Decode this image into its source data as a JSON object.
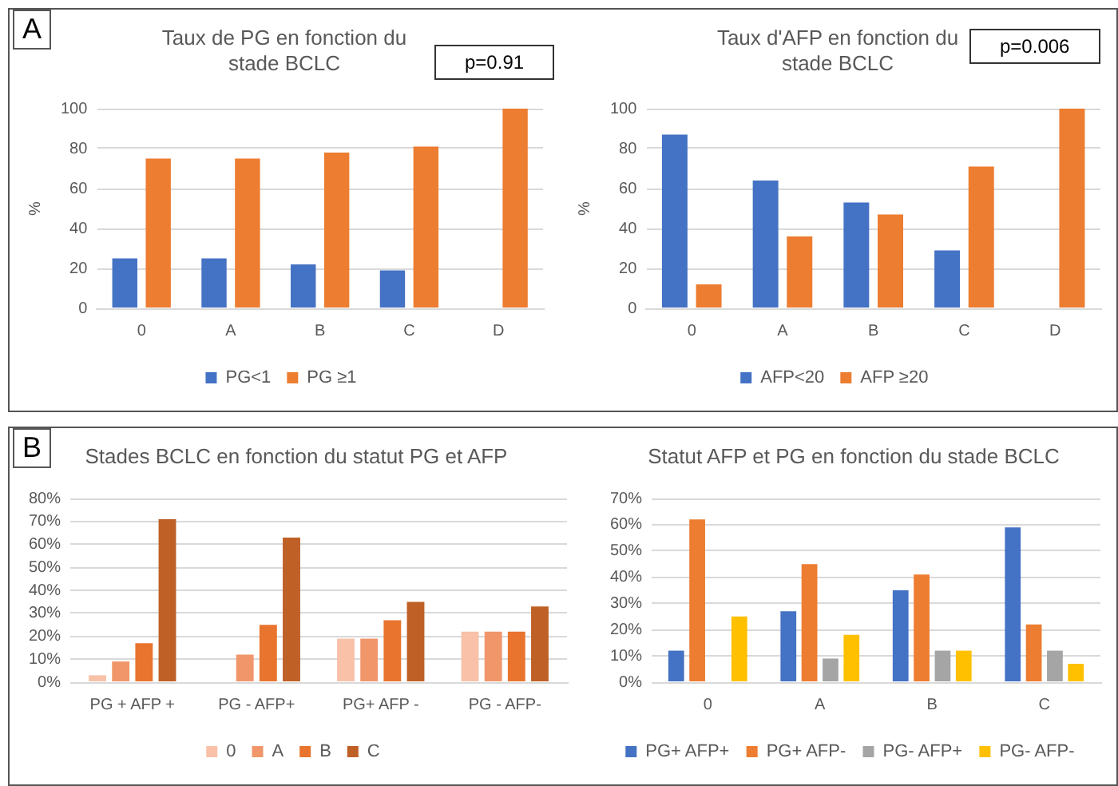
{
  "chart_data": [
    {
      "type": "bar",
      "title": "Taux de PG en fonction du stade BCLC",
      "ylabel": "%",
      "annotations": [
        "A",
        "p=0.91"
      ],
      "categories": [
        "0",
        "A",
        "B",
        "C",
        "D"
      ],
      "series": [
        {
          "name": "PG<1",
          "color": "#4472c4",
          "values": [
            25,
            25,
            22,
            19,
            0
          ]
        },
        {
          "name": "PG ≥1",
          "color": "#ed7d31",
          "values": [
            75,
            75,
            78,
            81,
            100
          ]
        }
      ],
      "ylim": [
        0,
        100
      ],
      "yticks": [
        0,
        20,
        40,
        60,
        80,
        100
      ],
      "grid": "y",
      "legend": "bottom"
    },
    {
      "type": "bar",
      "title": "Taux d'AFP en fonction du stade BCLC",
      "ylabel": "%",
      "annotations": [
        "p=0.006"
      ],
      "categories": [
        "0",
        "A",
        "B",
        "C",
        "D"
      ],
      "series": [
        {
          "name": "AFP<20",
          "color": "#4472c4",
          "values": [
            87,
            64,
            53,
            29,
            0
          ]
        },
        {
          "name": "AFP ≥20",
          "color": "#ed7d31",
          "values": [
            12,
            36,
            47,
            71,
            100
          ]
        }
      ],
      "ylim": [
        0,
        100
      ],
      "yticks": [
        0,
        20,
        40,
        60,
        80,
        100
      ],
      "grid": "y",
      "legend": "bottom"
    },
    {
      "type": "bar",
      "title": "Stades BCLC en fonction du statut PG et AFP",
      "annotations": [
        "B"
      ],
      "categories": [
        "PG + AFP +",
        "PG - AFP+",
        "PG+ AFP -",
        "PG - AFP-"
      ],
      "series": [
        {
          "name": "0",
          "color": "#f8c1a8",
          "values": [
            3,
            0,
            19,
            22
          ]
        },
        {
          "name": "A",
          "color": "#f0966a",
          "values": [
            9,
            12,
            19,
            22
          ]
        },
        {
          "name": "B",
          "color": "#e8742e",
          "values": [
            17,
            25,
            27,
            22
          ]
        },
        {
          "name": "C",
          "color": "#bf6026",
          "values": [
            71,
            63,
            35,
            33
          ]
        }
      ],
      "ylim": [
        0,
        80
      ],
      "yticks": [
        {
          "value": 0,
          "label": "0%"
        },
        {
          "value": 10,
          "label": "10%"
        },
        {
          "value": 20,
          "label": "20%"
        },
        {
          "value": 30,
          "label": "30%"
        },
        {
          "value": 40,
          "label": "40%"
        },
        {
          "value": 50,
          "label": "50%"
        },
        {
          "value": 60,
          "label": "60%"
        },
        {
          "value": 70,
          "label": "70%"
        },
        {
          "value": 80,
          "label": "80%"
        }
      ],
      "grid": "y",
      "legend": "bottom"
    },
    {
      "type": "bar",
      "title": "Statut AFP et PG en fonction du stade BCLC",
      "categories": [
        "0",
        "A",
        "B",
        "C"
      ],
      "series": [
        {
          "name": "PG+ AFP+",
          "color": "#4472c4",
          "values": [
            12,
            27,
            35,
            59
          ]
        },
        {
          "name": "PG+ AFP-",
          "color": "#ed7d31",
          "values": [
            62,
            45,
            41,
            22
          ]
        },
        {
          "name": "PG- AFP+",
          "color": "#a5a5a5",
          "values": [
            0,
            9,
            12,
            12
          ]
        },
        {
          "name": "PG- AFP-",
          "color": "#ffc000",
          "values": [
            25,
            18,
            12,
            7
          ]
        }
      ],
      "ylim": [
        0,
        70
      ],
      "yticks": [
        {
          "value": 0,
          "label": "0%"
        },
        {
          "value": 10,
          "label": "10%"
        },
        {
          "value": 20,
          "label": "20%"
        },
        {
          "value": 30,
          "label": "30%"
        },
        {
          "value": 40,
          "label": "40%"
        },
        {
          "value": 50,
          "label": "50%"
        },
        {
          "value": 60,
          "label": "60%"
        },
        {
          "value": 70,
          "label": "70%"
        }
      ],
      "grid": "y",
      "legend": "bottom"
    }
  ]
}
